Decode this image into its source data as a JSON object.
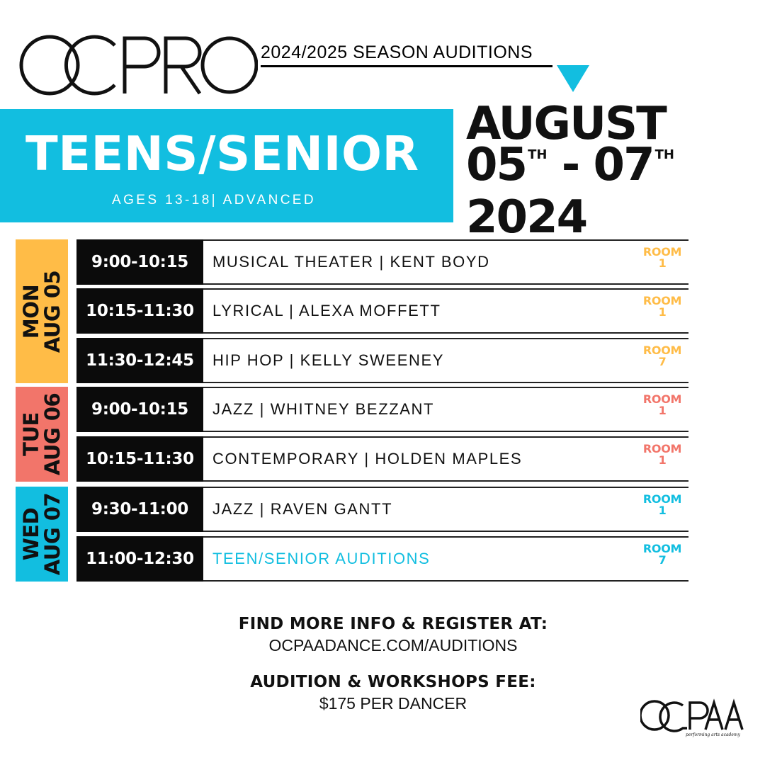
{
  "header": {
    "logo_text": "OCPRO",
    "season_title": "2024/2025 SEASON AUDITIONS"
  },
  "banner": {
    "title": "TEENS/SENIOR",
    "subtitle": "AGES 13-18| ADVANCED"
  },
  "dates": {
    "month": "AUGUST",
    "start_day": "05",
    "start_suffix": "TH",
    "separator": "-",
    "end_day": "07",
    "end_suffix": "TH",
    "year": "2024"
  },
  "colors": {
    "mon": "#ffbc47",
    "tue": "#f2756a",
    "wed": "#12bee0",
    "accent": "#12bee0"
  },
  "days": [
    {
      "weekday": "MON",
      "date": "AUG 05"
    },
    {
      "weekday": "TUE",
      "date": "AUG 06"
    },
    {
      "weekday": "WED",
      "date": "AUG 07"
    }
  ],
  "schedule": [
    {
      "time": "9:00-10:15",
      "class": "MUSICAL THEATER | KENT BOYD",
      "room_label": "ROOM",
      "room_number": "1"
    },
    {
      "time": "10:15-11:30",
      "class": "LYRICAL | ALEXA MOFFETT",
      "room_label": "ROOM",
      "room_number": "1"
    },
    {
      "time": "11:30-12:45",
      "class": "HIP HOP | KELLY SWEENEY",
      "room_label": "ROOM",
      "room_number": "7"
    },
    {
      "time": "9:00-10:15",
      "class": "JAZZ | WHITNEY BEZZANT",
      "room_label": "ROOM",
      "room_number": "1"
    },
    {
      "time": "10:15-11:30",
      "class": "CONTEMPORARY | HOLDEN MAPLES",
      "room_label": "ROOM",
      "room_number": "1"
    },
    {
      "time": "9:30-11:00",
      "class": "JAZZ | RAVEN GANTT",
      "room_label": "ROOM",
      "room_number": "1"
    },
    {
      "time": "11:00-12:30",
      "class": "TEEN/SENIOR AUDITIONS",
      "room_label": "ROOM",
      "room_number": "7"
    }
  ],
  "footer": {
    "info_heading": "FIND MORE INFO & REGISTER AT:",
    "info_url": "OCPAADANCE.COM/AUDITIONS",
    "fee_heading": "AUDITION & WORKSHOPS FEE:",
    "fee_value": "$175 PER DANCER"
  },
  "footer_logo": {
    "logo_text": "OCPAA",
    "tagline": "performing arts academy"
  }
}
